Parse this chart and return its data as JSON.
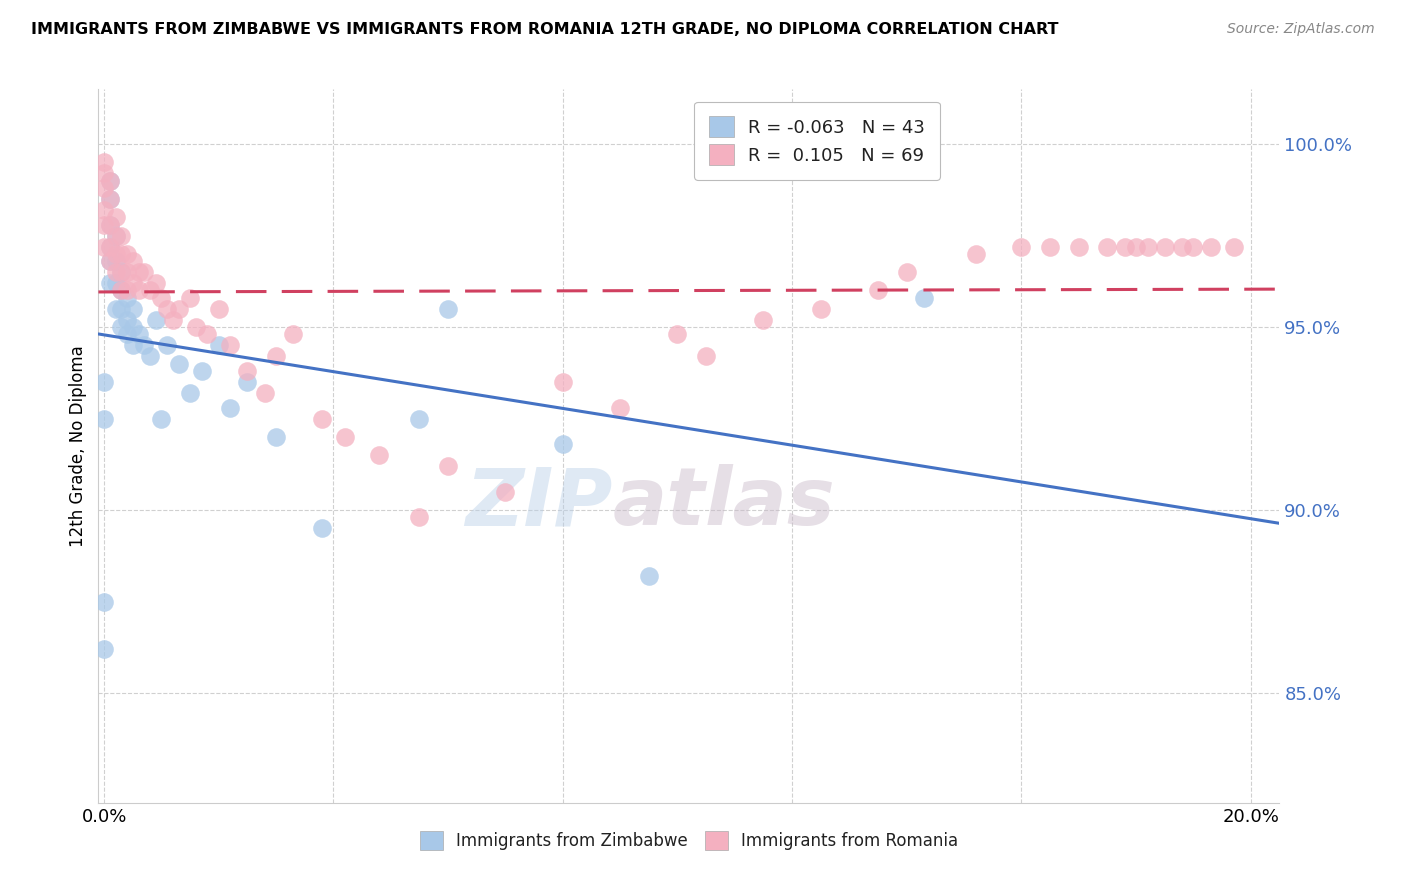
{
  "title": "IMMIGRANTS FROM ZIMBABWE VS IMMIGRANTS FROM ROMANIA 12TH GRADE, NO DIPLOMA CORRELATION CHART",
  "source": "Source: ZipAtlas.com",
  "ylabel": "12th Grade, No Diploma",
  "yticks": [
    100.0,
    95.0,
    90.0,
    85.0
  ],
  "ylim": [
    82.0,
    101.5
  ],
  "xlim": [
    -0.001,
    0.205
  ],
  "legend_r_zim": "-0.063",
  "legend_n_zim": "43",
  "legend_r_rom": "0.105",
  "legend_n_rom": "69",
  "watermark_zip": "ZIP",
  "watermark_atlas": "atlas",
  "zim_color": "#a8c8e8",
  "rom_color": "#f4b0c0",
  "zim_line_color": "#4472c4",
  "rom_line_color": "#d04060",
  "background": "#ffffff",
  "zim_x": [
    0.0,
    0.0,
    0.0,
    0.0,
    0.001,
    0.001,
    0.001,
    0.001,
    0.001,
    0.001,
    0.002,
    0.002,
    0.002,
    0.002,
    0.003,
    0.003,
    0.003,
    0.003,
    0.004,
    0.004,
    0.004,
    0.005,
    0.005,
    0.005,
    0.006,
    0.007,
    0.008,
    0.009,
    0.01,
    0.011,
    0.013,
    0.015,
    0.017,
    0.02,
    0.022,
    0.025,
    0.03,
    0.038,
    0.055,
    0.06,
    0.08,
    0.095,
    0.143
  ],
  "zim_y": [
    93.5,
    92.5,
    87.5,
    86.2,
    99.0,
    98.5,
    97.8,
    97.2,
    96.8,
    96.2,
    97.5,
    96.8,
    96.2,
    95.5,
    96.5,
    96.0,
    95.5,
    95.0,
    95.8,
    95.2,
    94.8,
    95.5,
    95.0,
    94.5,
    94.8,
    94.5,
    94.2,
    95.2,
    92.5,
    94.5,
    94.0,
    93.2,
    93.8,
    94.5,
    92.8,
    93.5,
    92.0,
    89.5,
    92.5,
    95.5,
    91.8,
    88.2,
    95.8
  ],
  "rom_x": [
    0.0,
    0.0,
    0.0,
    0.0,
    0.0,
    0.0,
    0.001,
    0.001,
    0.001,
    0.001,
    0.001,
    0.002,
    0.002,
    0.002,
    0.002,
    0.003,
    0.003,
    0.003,
    0.003,
    0.004,
    0.004,
    0.004,
    0.005,
    0.005,
    0.006,
    0.006,
    0.007,
    0.008,
    0.009,
    0.01,
    0.011,
    0.012,
    0.013,
    0.015,
    0.016,
    0.018,
    0.02,
    0.022,
    0.025,
    0.028,
    0.03,
    0.033,
    0.038,
    0.042,
    0.048,
    0.055,
    0.06,
    0.07,
    0.08,
    0.09,
    0.1,
    0.105,
    0.115,
    0.125,
    0.135,
    0.14,
    0.152,
    0.16,
    0.165,
    0.17,
    0.175,
    0.178,
    0.18,
    0.182,
    0.185,
    0.188,
    0.19,
    0.193,
    0.197
  ],
  "rom_y": [
    99.5,
    99.2,
    98.8,
    98.2,
    97.8,
    97.2,
    99.0,
    98.5,
    97.8,
    97.2,
    96.8,
    98.0,
    97.5,
    97.0,
    96.5,
    97.5,
    97.0,
    96.5,
    96.0,
    97.0,
    96.5,
    96.0,
    96.8,
    96.2,
    96.5,
    96.0,
    96.5,
    96.0,
    96.2,
    95.8,
    95.5,
    95.2,
    95.5,
    95.8,
    95.0,
    94.8,
    95.5,
    94.5,
    93.8,
    93.2,
    94.2,
    94.8,
    92.5,
    92.0,
    91.5,
    89.8,
    91.2,
    90.5,
    93.5,
    92.8,
    94.8,
    94.2,
    95.2,
    95.5,
    96.0,
    96.5,
    97.0,
    97.2,
    97.2,
    97.2,
    97.2,
    97.2,
    97.2,
    97.2,
    97.2,
    97.2,
    97.2,
    97.2,
    97.2
  ]
}
